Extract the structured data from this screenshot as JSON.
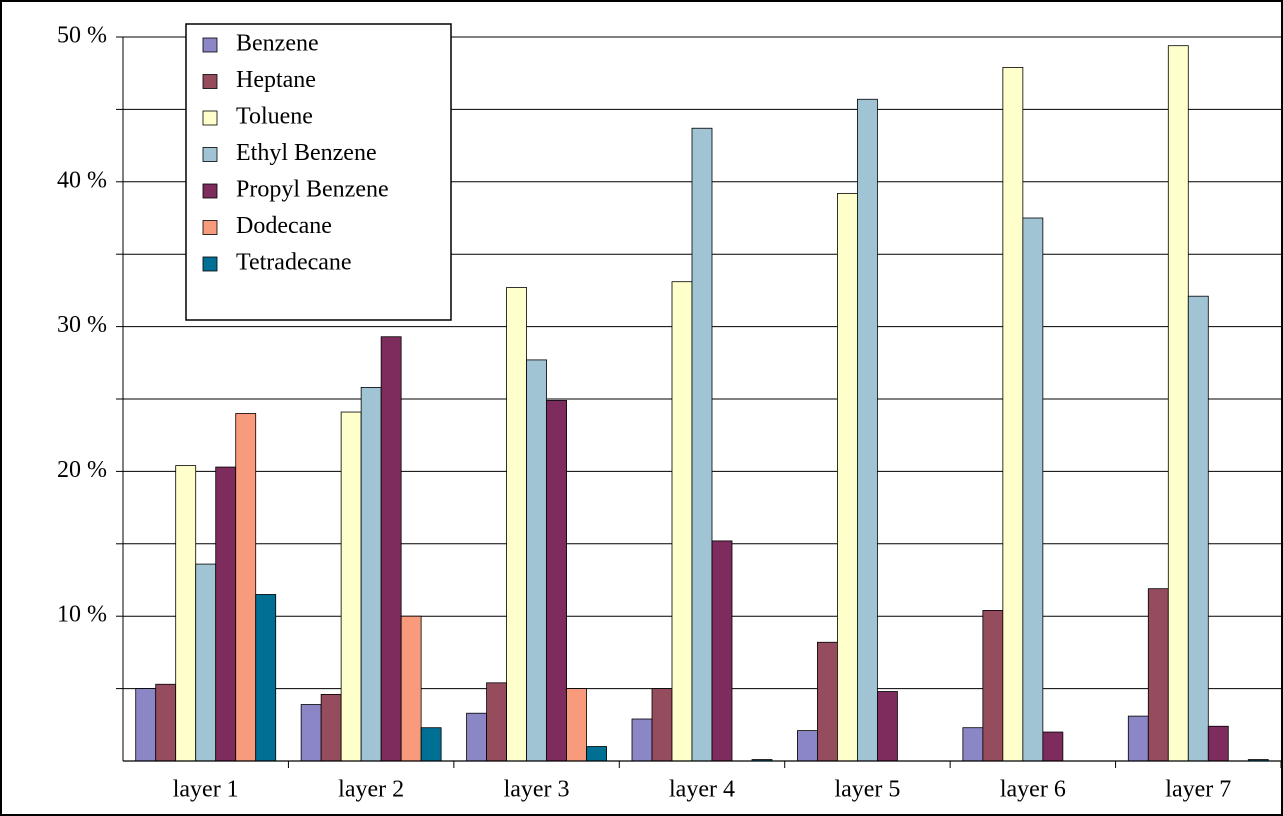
{
  "chart_data": {
    "type": "bar",
    "categories": [
      "layer 1",
      "layer 2",
      "layer 3",
      "layer 4",
      "layer 5",
      "layer 6",
      "layer 7"
    ],
    "series": [
      {
        "name": "Benzene",
        "color": "#8b86c6",
        "values": [
          5.0,
          3.9,
          3.3,
          2.9,
          2.1,
          2.3,
          3.1
        ]
      },
      {
        "name": "Heptane",
        "color": "#954d5e",
        "values": [
          5.3,
          4.6,
          5.4,
          5.0,
          8.2,
          10.4,
          11.9
        ]
      },
      {
        "name": "Toluene",
        "color": "#ffffcc",
        "values": [
          20.4,
          24.1,
          32.7,
          33.1,
          39.2,
          47.9,
          49.4
        ]
      },
      {
        "name": "Ethyl Benzene",
        "color": "#a0c4d4",
        "values": [
          13.6,
          25.8,
          27.7,
          43.7,
          45.7,
          37.5,
          32.1
        ]
      },
      {
        "name": "Propyl Benzene",
        "color": "#7e2c5e",
        "values": [
          20.3,
          29.3,
          24.9,
          15.2,
          4.8,
          2.0,
          2.4
        ]
      },
      {
        "name": "Dodecane",
        "color": "#f79b7c",
        "values": [
          24.0,
          10.0,
          5.0,
          0,
          0,
          0,
          0
        ]
      },
      {
        "name": "Tetradecane",
        "color": "#006f94",
        "values": [
          11.5,
          2.3,
          1.0,
          0.1,
          0,
          0,
          0.1
        ]
      }
    ],
    "ylim": [
      0,
      50
    ],
    "yticks": [
      {
        "value": 10,
        "label": "10 %"
      },
      {
        "value": 20,
        "label": "20 %"
      },
      {
        "value": 30,
        "label": "30 %"
      },
      {
        "value": 40,
        "label": "40 %"
      },
      {
        "value": 50,
        "label": "50 %"
      }
    ],
    "minor_yticks": [
      5,
      15,
      25,
      35,
      45
    ],
    "grid": true,
    "legend": "upper-left"
  }
}
